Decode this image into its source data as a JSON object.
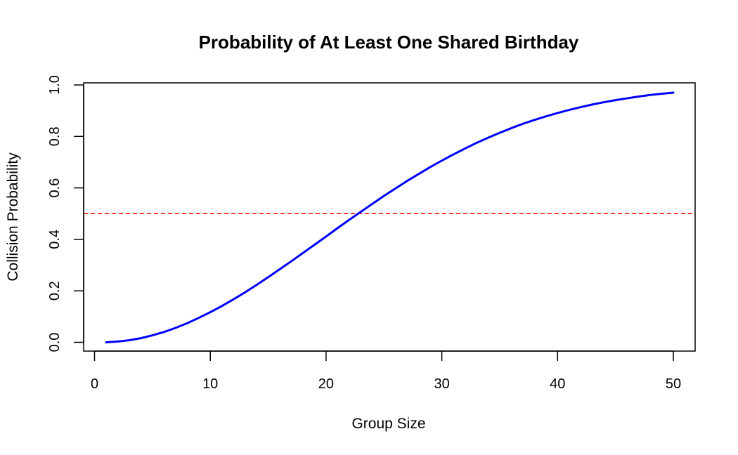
{
  "chart_data": {
    "type": "line",
    "title": "Probability of At Least One Shared Birthday",
    "xlabel": "Group Size",
    "ylabel": "Collision Probability",
    "xlim": [
      0,
      52
    ],
    "ylim": [
      0,
      1
    ],
    "x_ticks": [
      "0",
      "10",
      "20",
      "30",
      "40",
      "50"
    ],
    "y_ticks": [
      "0.0",
      "0.2",
      "0.4",
      "0.6",
      "0.8",
      "1.0"
    ],
    "grid": false,
    "legend": "none",
    "series": [
      {
        "color": "#0000ff",
        "x": [
          1,
          2,
          3,
          4,
          5,
          6,
          7,
          8,
          9,
          10,
          11,
          12,
          13,
          14,
          15,
          16,
          17,
          18,
          19,
          20,
          21,
          22,
          23,
          24,
          25,
          26,
          27,
          28,
          29,
          30,
          31,
          32,
          33,
          34,
          35,
          36,
          37,
          38,
          39,
          40,
          41,
          42,
          43,
          44,
          45,
          46,
          47,
          48,
          49,
          50
        ],
        "y": [
          0.0,
          0.003,
          0.008,
          0.016,
          0.027,
          0.04,
          0.056,
          0.074,
          0.095,
          0.117,
          0.141,
          0.167,
          0.194,
          0.223,
          0.253,
          0.284,
          0.315,
          0.347,
          0.379,
          0.411,
          0.444,
          0.476,
          0.507,
          0.538,
          0.569,
          0.598,
          0.627,
          0.654,
          0.681,
          0.706,
          0.73,
          0.753,
          0.775,
          0.795,
          0.814,
          0.832,
          0.849,
          0.864,
          0.878,
          0.891,
          0.903,
          0.914,
          0.924,
          0.933,
          0.941,
          0.948,
          0.955,
          0.961,
          0.966,
          0.97
        ]
      }
    ],
    "reference_lines": [
      {
        "orientation": "horizontal",
        "y": 0.5,
        "color": "#ff0000",
        "style": "dashed"
      }
    ]
  }
}
